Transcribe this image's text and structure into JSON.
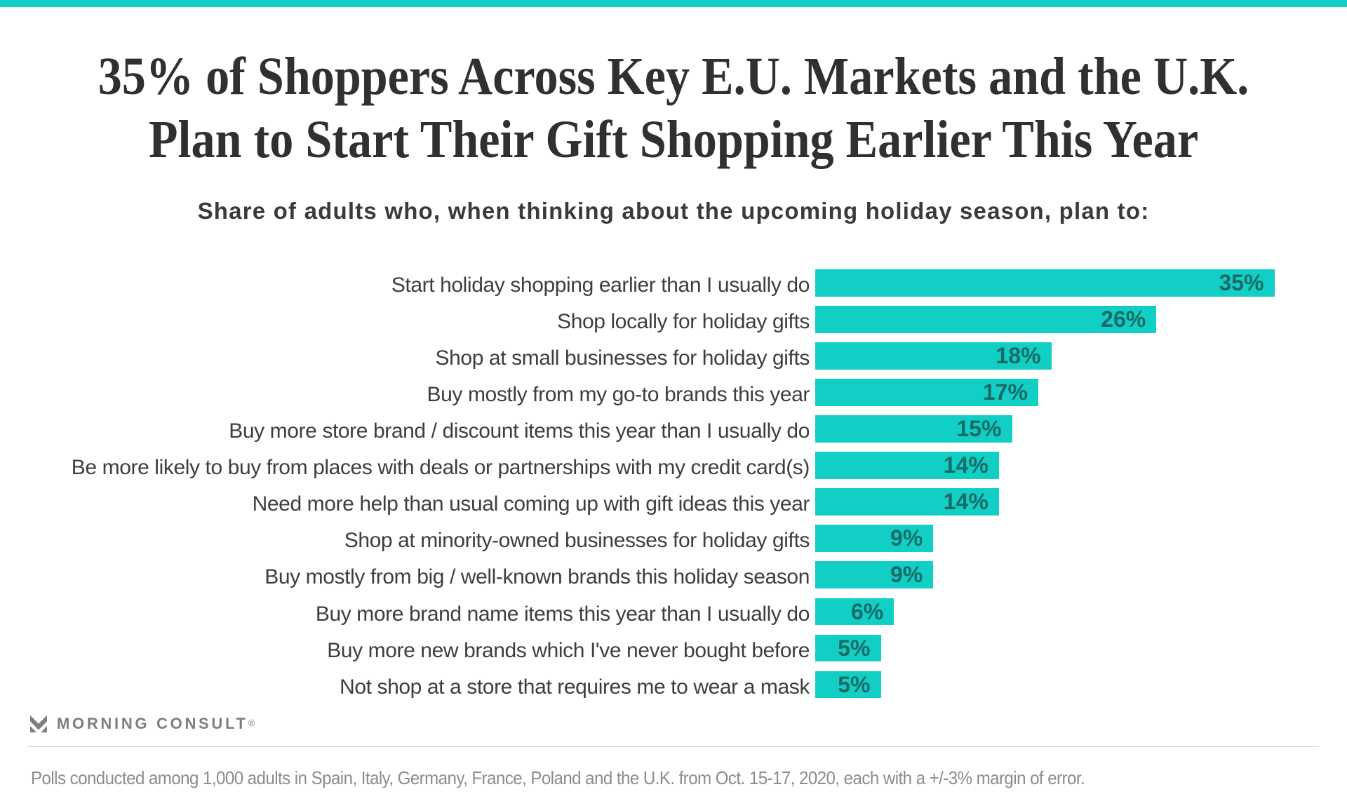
{
  "theme": {
    "accent_color": "#11CFC5",
    "value_label_color": "#166B66",
    "title_color": "#303030",
    "text_color": "#3E3E3E",
    "note_color": "#8C8C8C",
    "logo_color": "#7E7E7E"
  },
  "header": {
    "title_line1": "35% of Shoppers Across Key E.U. Markets and the U.K.",
    "title_line2": "Plan to Start Their Gift Shopping Earlier This Year",
    "subtitle": "Share of adults who, when thinking about the upcoming holiday season, plan to:"
  },
  "chart_data": {
    "type": "bar",
    "orientation": "horizontal",
    "title": "Share of adults who, when thinking about the upcoming holiday season, plan to:",
    "categories": [
      "Start holiday shopping earlier than I usually do",
      "Shop locally for holiday gifts",
      "Shop at small businesses for holiday gifts",
      "Buy mostly from my go-to brands this year",
      "Buy more store brand / discount items this year than I usually do",
      "Be more likely to buy from places with deals or partnerships with my credit card(s)",
      "Need more help than usual coming up with gift ideas this year",
      "Shop at minority-owned businesses for holiday gifts",
      "Buy mostly from big / well-known brands this holiday season",
      "Buy more brand name items this year than I usually do",
      "Buy more new brands which I've never bought before",
      "Not shop at a store that requires me to wear a mask"
    ],
    "values": [
      35,
      26,
      18,
      17,
      15,
      14,
      14,
      9,
      9,
      6,
      5,
      5
    ],
    "value_suffix": "%",
    "xlim": [
      0,
      35
    ],
    "bar_color": "#11CFC5",
    "grid": false,
    "legend": false
  },
  "footer": {
    "logo_text": "MORNING CONSULT",
    "registered_mark": "®",
    "note": "Polls conducted among 1,000 adults in Spain, Italy, Germany, France, Poland and the U.K. from Oct. 15-17, 2020, each with a +/-3% margin of error."
  }
}
